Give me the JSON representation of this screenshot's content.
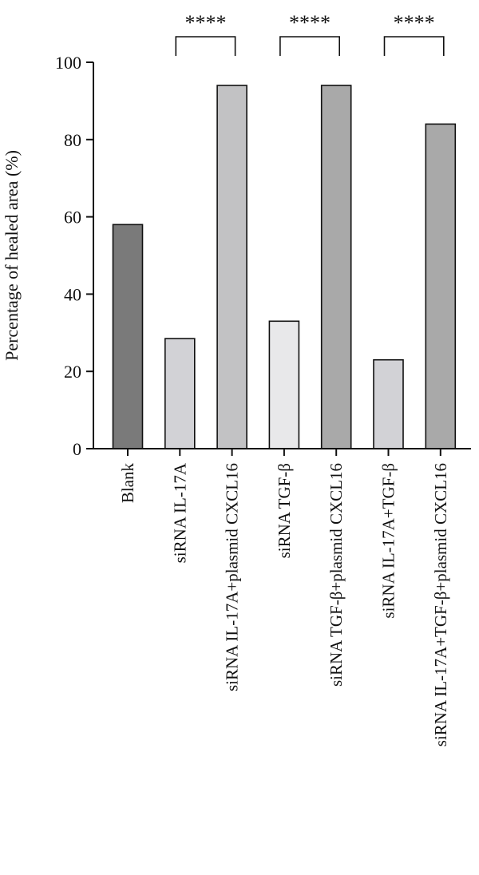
{
  "chart_data": {
    "type": "bar",
    "title": "",
    "xlabel": "",
    "ylabel": "Percentage of healed area (%)",
    "ylim": [
      0,
      100
    ],
    "yticks": [
      0,
      20,
      40,
      60,
      80,
      100
    ],
    "categories": [
      "Blank",
      "siRNA IL-17A",
      "siRNA IL-17A+plasmid CXCL16",
      "siRNA TGF-β",
      "siRNA TGF-β+plasmid CXCL16",
      "siRNA IL-17A+TGF-β",
      "siRNA IL-17A+TGF-β+plasmid CXCL16"
    ],
    "values": [
      58,
      28.5,
      94,
      33,
      94,
      23,
      84
    ],
    "bar_colors": [
      "#7a7a7a",
      "#d2d2d6",
      "#c2c2c4",
      "#e8e8ea",
      "#a9a9a9",
      "#d2d2d6",
      "#a9a9a9"
    ],
    "grid": false,
    "significance": [
      {
        "from": 1,
        "to": 2,
        "label": "****"
      },
      {
        "from": 3,
        "to": 4,
        "label": "****"
      },
      {
        "from": 5,
        "to": 6,
        "label": "****"
      }
    ]
  }
}
